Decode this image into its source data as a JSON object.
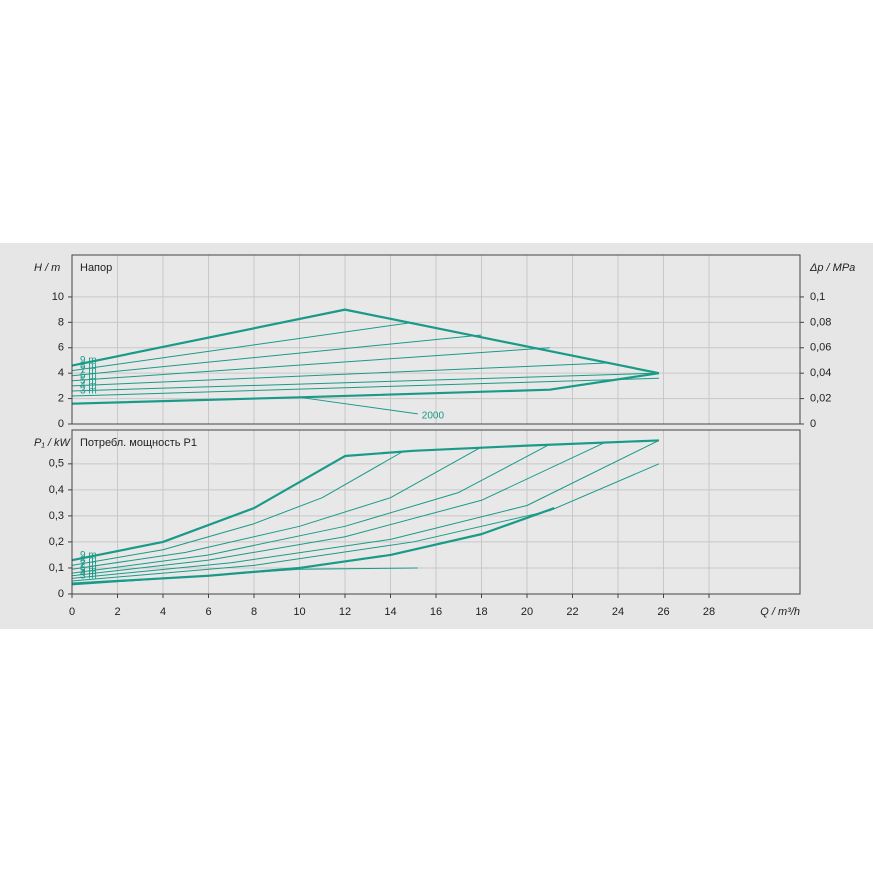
{
  "chart_data": [
    {
      "type": "line",
      "title": "Напор",
      "ylabel": "H / m",
      "y2label": "Δp / MPa",
      "xlim": [
        0,
        32
      ],
      "xticks": [
        0,
        2,
        4,
        6,
        8,
        10,
        12,
        14,
        16,
        18,
        20,
        22,
        24,
        26,
        28
      ],
      "ylim": [
        0,
        13.3
      ],
      "yticks": [
        0,
        2,
        4,
        6,
        8,
        10
      ],
      "y2lim": [
        0,
        0.133
      ],
      "y2ticks": [
        0,
        {
          "value": 0.02,
          "label": "0,02"
        },
        {
          "value": 0.04,
          "label": "0,04"
        },
        {
          "value": 0.06,
          "label": "0,06"
        },
        {
          "value": 0.08,
          "label": "0,08"
        },
        {
          "value": 0.1,
          "label": "0,1"
        }
      ],
      "grid": true,
      "series": [
        {
          "name": "9 m",
          "label_at": "start",
          "color": "#1a9a88",
          "line_width": 2.2,
          "x": [
            0,
            12,
            25.8
          ],
          "values": [
            4.6,
            9,
            4
          ]
        },
        {
          "name": "8 m",
          "label_at": "start",
          "color": "#1a9a88",
          "line_width": 1,
          "x": [
            0,
            15
          ],
          "values": [
            4.2,
            8
          ]
        },
        {
          "name": "7 m",
          "label_at": "start",
          "color": "#1a9a88",
          "line_width": 1,
          "x": [
            0,
            18
          ],
          "values": [
            3.8,
            7
          ]
        },
        {
          "name": "6 m",
          "label_at": "start",
          "color": "#1a9a88",
          "line_width": 1,
          "x": [
            0,
            21
          ],
          "values": [
            3.4,
            6
          ]
        },
        {
          "name": "5 m",
          "label_at": "start",
          "color": "#1a9a88",
          "line_width": 1,
          "x": [
            0,
            23.5
          ],
          "values": [
            3.0,
            4.8
          ]
        },
        {
          "name": "4 m",
          "label_at": "start",
          "color": "#1a9a88",
          "line_width": 1,
          "x": [
            0,
            25.8
          ],
          "values": [
            2.6,
            4
          ]
        },
        {
          "name": "3 m",
          "label_at": "start",
          "color": "#1a9a88",
          "line_width": 1,
          "x": [
            0,
            25.8
          ],
          "values": [
            2.2,
            3.6
          ]
        },
        {
          "color": "#1a9a88",
          "line_width": 2.2,
          "x": [
            0,
            10,
            21,
            25.8
          ],
          "values": [
            1.6,
            2.1,
            2.7,
            4
          ]
        },
        {
          "name": "2000",
          "label_at": "end",
          "color": "#1a9a88",
          "line_width": 1,
          "x": [
            10,
            15.2
          ],
          "values": [
            2.1,
            0.8
          ]
        }
      ]
    },
    {
      "type": "line",
      "title": "Потребл. мощность P1",
      "ylabel": "P₁ / kW",
      "xlabel": "Q / m³/h",
      "xlim": [
        0,
        32
      ],
      "xticks": [
        0,
        2,
        4,
        6,
        8,
        10,
        12,
        14,
        16,
        18,
        20,
        22,
        24,
        26,
        28
      ],
      "ylim": [
        0,
        0.63
      ],
      "yticks": [
        0,
        {
          "value": 0.1,
          "label": "0,1"
        },
        {
          "value": 0.2,
          "label": "0,2"
        },
        {
          "value": 0.3,
          "label": "0,3"
        },
        {
          "value": 0.4,
          "label": "0,4"
        },
        {
          "value": 0.5,
          "label": "0,5"
        }
      ],
      "grid": true,
      "series": [
        {
          "name": "9 m",
          "label_at": "start",
          "color": "#1a9a88",
          "line_width": 2.2,
          "x": [
            0,
            4,
            8,
            12,
            15,
            20,
            25.8
          ],
          "values": [
            0.13,
            0.2,
            0.33,
            0.53,
            0.55,
            0.57,
            0.59
          ]
        },
        {
          "name": "8 m",
          "label_at": "start",
          "color": "#1a9a88",
          "line_width": 1,
          "x": [
            0,
            4,
            8,
            11,
            14.5
          ],
          "values": [
            0.11,
            0.17,
            0.27,
            0.37,
            0.545
          ]
        },
        {
          "name": "7 m",
          "label_at": "start",
          "color": "#1a9a88",
          "line_width": 1,
          "x": [
            0,
            5,
            10,
            14,
            18
          ],
          "values": [
            0.095,
            0.16,
            0.26,
            0.37,
            0.565
          ]
        },
        {
          "name": "6 m",
          "label_at": "start",
          "color": "#1a9a88",
          "line_width": 1,
          "x": [
            0,
            6,
            12,
            17,
            21
          ],
          "values": [
            0.08,
            0.15,
            0.26,
            0.39,
            0.575
          ]
        },
        {
          "name": "5 m",
          "label_at": "start",
          "color": "#1a9a88",
          "line_width": 1,
          "x": [
            0,
            6,
            12,
            18,
            23.5
          ],
          "values": [
            0.07,
            0.13,
            0.22,
            0.36,
            0.585
          ]
        },
        {
          "name": "4 m",
          "label_at": "start",
          "color": "#1a9a88",
          "line_width": 1,
          "x": [
            0,
            7,
            14,
            20,
            25.8
          ],
          "values": [
            0.06,
            0.12,
            0.21,
            0.34,
            0.59
          ]
        },
        {
          "name": "3 m",
          "label_at": "start",
          "color": "#1a9a88",
          "line_width": 1,
          "x": [
            0,
            8,
            15,
            21,
            25.8
          ],
          "values": [
            0.05,
            0.11,
            0.2,
            0.32,
            0.5
          ]
        },
        {
          "color": "#1a9a88",
          "line_width": 2.2,
          "x": [
            0,
            6,
            10,
            14,
            18,
            21.2
          ],
          "values": [
            0.04,
            0.07,
            0.1,
            0.15,
            0.23,
            0.33
          ]
        },
        {
          "color": "#1a9a88",
          "line_width": 1,
          "x": [
            0,
            5,
            10,
            15.2
          ],
          "values": [
            0.035,
            0.065,
            0.095,
            0.1
          ]
        }
      ]
    }
  ]
}
